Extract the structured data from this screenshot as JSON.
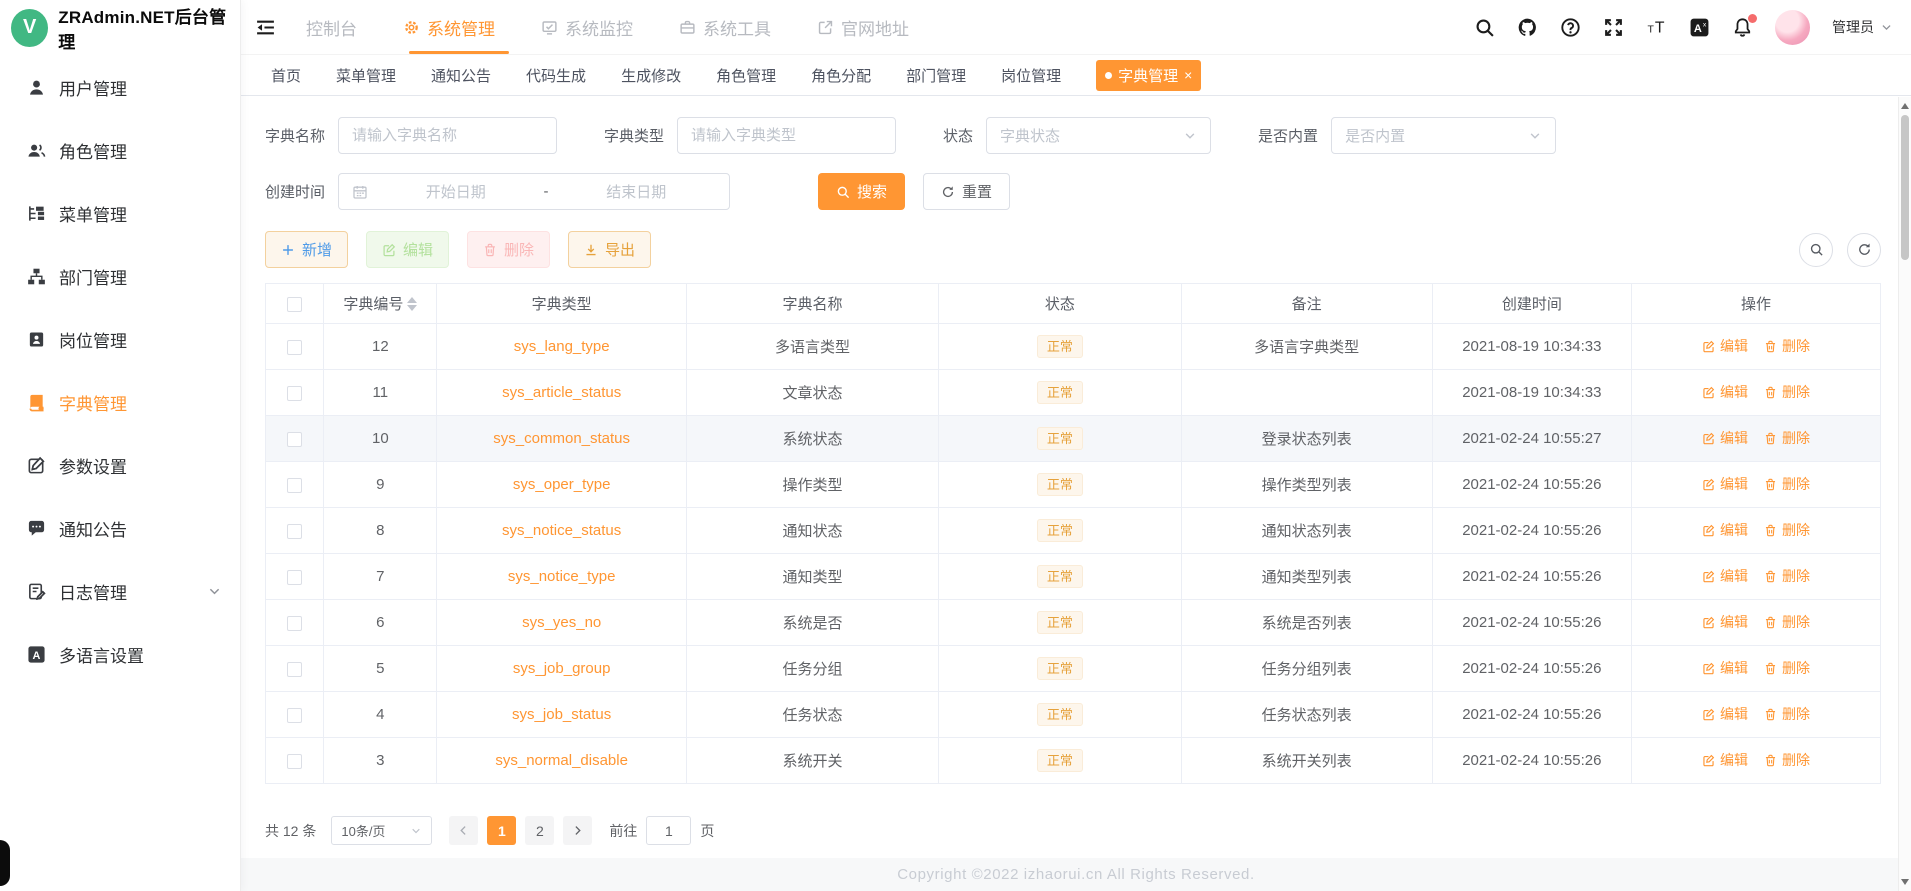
{
  "theme": {
    "accent": "#ff9633",
    "green": "#41b883",
    "badge_text": "#e6a23c",
    "badge_bg": "#fdf6ec",
    "notify_dot": "#f56c6c"
  },
  "app": {
    "title": "ZRAdmin.NET后台管理",
    "logo_letter": "V"
  },
  "header": {
    "nav": [
      {
        "label": "控制台",
        "icon": null,
        "active": false
      },
      {
        "label": "系统管理",
        "icon": "gear-icon",
        "active": true
      },
      {
        "label": "系统监控",
        "icon": "monitor-icon",
        "active": false
      },
      {
        "label": "系统工具",
        "icon": "toolbox-icon",
        "active": false
      },
      {
        "label": "官网地址",
        "icon": "external-link-icon",
        "active": false
      }
    ],
    "action_icons": [
      "search-icon",
      "github-icon",
      "help-icon",
      "fullscreen-icon",
      "font-size-icon",
      "translate-icon",
      "bell-icon"
    ],
    "user": {
      "name": "管理员"
    }
  },
  "sidebar": {
    "items": [
      {
        "label": "用户管理",
        "icon": "user-icon",
        "active": false
      },
      {
        "label": "角色管理",
        "icon": "users-icon",
        "active": false
      },
      {
        "label": "菜单管理",
        "icon": "menu-tree-icon",
        "active": false
      },
      {
        "label": "部门管理",
        "icon": "org-chart-icon",
        "active": false
      },
      {
        "label": "岗位管理",
        "icon": "badge-icon",
        "active": false
      },
      {
        "label": "字典管理",
        "icon": "dict-book-icon",
        "active": true
      },
      {
        "label": "参数设置",
        "icon": "edit-square-icon",
        "active": false
      },
      {
        "label": "通知公告",
        "icon": "chat-icon",
        "active": false
      },
      {
        "label": "日志管理",
        "icon": "log-icon",
        "active": false,
        "expandable": true
      },
      {
        "label": "多语言设置",
        "icon": "i18n-icon",
        "active": false
      }
    ]
  },
  "tabs": [
    {
      "label": "首页",
      "active": false
    },
    {
      "label": "菜单管理",
      "active": false
    },
    {
      "label": "通知公告",
      "active": false
    },
    {
      "label": "代码生成",
      "active": false
    },
    {
      "label": "生成修改",
      "active": false
    },
    {
      "label": "角色管理",
      "active": false
    },
    {
      "label": "角色分配",
      "active": false
    },
    {
      "label": "部门管理",
      "active": false
    },
    {
      "label": "岗位管理",
      "active": false
    },
    {
      "label": "字典管理",
      "active": true,
      "closable": true
    }
  ],
  "filters": {
    "dict_name": {
      "label": "字典名称",
      "placeholder": "请输入字典名称",
      "value": ""
    },
    "dict_type": {
      "label": "字典类型",
      "placeholder": "请输入字典类型",
      "value": ""
    },
    "status": {
      "label": "状态",
      "placeholder": "字典状态"
    },
    "builtin": {
      "label": "是否内置",
      "placeholder": "是否内置"
    },
    "create_time": {
      "label": "创建时间",
      "start_placeholder": "开始日期",
      "separator": "-",
      "end_placeholder": "结束日期"
    },
    "search_label": "搜索",
    "reset_label": "重置"
  },
  "toolbar": {
    "add": "新增",
    "edit": "编辑",
    "delete": "删除",
    "export": "导出"
  },
  "table": {
    "headers": [
      "字典编号",
      "字典类型",
      "字典名称",
      "状态",
      "备注",
      "创建时间",
      "操作"
    ],
    "actions": {
      "edit": "编辑",
      "delete": "删除"
    },
    "rows": [
      {
        "id": "12",
        "type": "sys_lang_type",
        "name": "多语言类型",
        "status": "正常",
        "remark": "多语言字典类型",
        "created": "2021-08-19 10:34:33",
        "highlight": false
      },
      {
        "id": "11",
        "type": "sys_article_status",
        "name": "文章状态",
        "status": "正常",
        "remark": "",
        "created": "2021-08-19 10:34:33",
        "highlight": false
      },
      {
        "id": "10",
        "type": "sys_common_status",
        "name": "系统状态",
        "status": "正常",
        "remark": "登录状态列表",
        "created": "2021-02-24 10:55:27",
        "highlight": true
      },
      {
        "id": "9",
        "type": "sys_oper_type",
        "name": "操作类型",
        "status": "正常",
        "remark": "操作类型列表",
        "created": "2021-02-24 10:55:26",
        "highlight": false
      },
      {
        "id": "8",
        "type": "sys_notice_status",
        "name": "通知状态",
        "status": "正常",
        "remark": "通知状态列表",
        "created": "2021-02-24 10:55:26",
        "highlight": false
      },
      {
        "id": "7",
        "type": "sys_notice_type",
        "name": "通知类型",
        "status": "正常",
        "remark": "通知类型列表",
        "created": "2021-02-24 10:55:26",
        "highlight": false
      },
      {
        "id": "6",
        "type": "sys_yes_no",
        "name": "系统是否",
        "status": "正常",
        "remark": "系统是否列表",
        "created": "2021-02-24 10:55:26",
        "highlight": false
      },
      {
        "id": "5",
        "type": "sys_job_group",
        "name": "任务分组",
        "status": "正常",
        "remark": "任务分组列表",
        "created": "2021-02-24 10:55:26",
        "highlight": false
      },
      {
        "id": "4",
        "type": "sys_job_status",
        "name": "任务状态",
        "status": "正常",
        "remark": "任务状态列表",
        "created": "2021-02-24 10:55:26",
        "highlight": false
      },
      {
        "id": "3",
        "type": "sys_normal_disable",
        "name": "系统开关",
        "status": "正常",
        "remark": "系统开关列表",
        "created": "2021-02-24 10:55:26",
        "highlight": false
      }
    ]
  },
  "pagination": {
    "total_text": "共 12 条",
    "page_size": "10条/页",
    "pages": [
      {
        "label": "1",
        "active": true
      },
      {
        "label": "2",
        "active": false
      }
    ],
    "goto_label": "前往",
    "goto_value": "1",
    "goto_unit": "页"
  },
  "footer": {
    "copyright": "Copyright ©2022 izhaorui.cn All Rights Reserved."
  }
}
